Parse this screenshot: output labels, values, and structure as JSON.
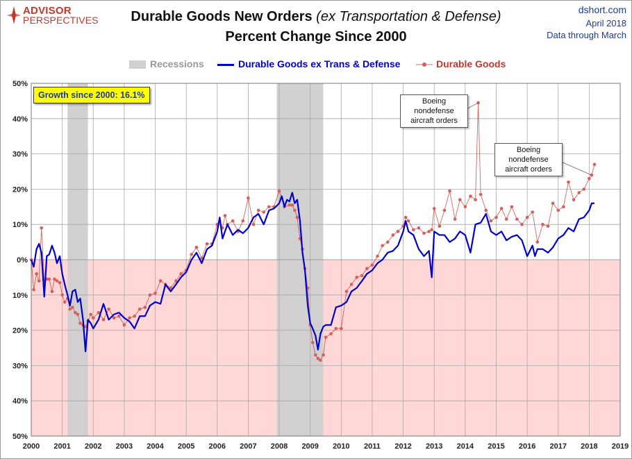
{
  "brand": {
    "name": "ADVISOR",
    "sub": "PERSPECTIVES"
  },
  "header": {
    "title_main": "Durable Goods New Orders",
    "title_em": "(ex Transportation & Defense)",
    "title_line2": "Percent Change Since 2000",
    "site": "dshort.com",
    "date": "April 2018",
    "data_through": "Data through March"
  },
  "colors": {
    "blue_series": "#0000cc",
    "red_series": "#c0392b",
    "recession": "#cfcfcf",
    "negative_region": "#ffd7d7"
  },
  "annotations": {
    "growth": "Growth since 2000:  16.1%",
    "boeing_1": [
      "Boeing",
      "nondefense",
      "aircraft orders"
    ],
    "boeing_2": [
      "Boeing",
      "nondefense",
      "aircraft orders"
    ]
  },
  "chart_data": {
    "type": "line",
    "title": "Durable Goods New Orders (ex Transportation & Defense) Percent Change Since 2000",
    "xlabel": "",
    "ylabel": "",
    "xlim": [
      2000,
      2019
    ],
    "ylim": [
      -50,
      50
    ],
    "y_ticks": [
      50,
      40,
      30,
      20,
      10,
      0,
      -10,
      -20,
      -30,
      -40,
      -50
    ],
    "y_tick_labels": [
      "50%",
      "40%",
      "30%",
      "20%",
      "10%",
      "0%",
      "10%",
      "20%",
      "30%",
      "40%",
      "50%"
    ],
    "x_ticks": [
      2000,
      2001,
      2002,
      2003,
      2004,
      2005,
      2006,
      2007,
      2008,
      2009,
      2010,
      2011,
      2012,
      2013,
      2014,
      2015,
      2016,
      2017,
      2018,
      2019
    ],
    "x_tick_labels": [
      "2000",
      "2001",
      "2002",
      "2003",
      "2004",
      "2005",
      "2006",
      "2007",
      "2008",
      "2009",
      "2010",
      "2011",
      "2012",
      "2013",
      "2014",
      "2015",
      "2016",
      "2017",
      "2018",
      "2019"
    ],
    "grid": true,
    "legend_position": "top-center",
    "recessions": [
      {
        "label": "Recessions",
        "start": 2001.17,
        "end": 2001.83
      },
      {
        "label": "Recessions",
        "start": 2007.92,
        "end": 2009.42
      }
    ],
    "series": [
      {
        "name": "Durable Goods ex Trans & Defense",
        "color": "#0000cc",
        "style": "line",
        "points": [
          [
            2000.0,
            0
          ],
          [
            2000.08,
            -2
          ],
          [
            2000.17,
            3
          ],
          [
            2000.25,
            4.5
          ],
          [
            2000.33,
            2
          ],
          [
            2000.42,
            -10.5
          ],
          [
            2000.5,
            1
          ],
          [
            2000.58,
            1.5
          ],
          [
            2000.67,
            4
          ],
          [
            2000.75,
            2
          ],
          [
            2000.83,
            -1
          ],
          [
            2000.92,
            1
          ],
          [
            2001.0,
            -4
          ],
          [
            2001.08,
            -7
          ],
          [
            2001.17,
            -10
          ],
          [
            2001.25,
            -13
          ],
          [
            2001.33,
            -9
          ],
          [
            2001.42,
            -8.5
          ],
          [
            2001.5,
            -12
          ],
          [
            2001.58,
            -11
          ],
          [
            2001.67,
            -17
          ],
          [
            2001.75,
            -26
          ],
          [
            2001.83,
            -17
          ],
          [
            2001.92,
            -18
          ],
          [
            2002.0,
            -19.5
          ],
          [
            2002.17,
            -17
          ],
          [
            2002.33,
            -12.5
          ],
          [
            2002.5,
            -17
          ],
          [
            2002.67,
            -15.5
          ],
          [
            2002.83,
            -15
          ],
          [
            2003.0,
            -16.5
          ],
          [
            2003.17,
            -17.5
          ],
          [
            2003.33,
            -19.5
          ],
          [
            2003.5,
            -16
          ],
          [
            2003.67,
            -16
          ],
          [
            2003.83,
            -13
          ],
          [
            2004.0,
            -12
          ],
          [
            2004.17,
            -12.5
          ],
          [
            2004.33,
            -7
          ],
          [
            2004.5,
            -9
          ],
          [
            2004.67,
            -7
          ],
          [
            2004.83,
            -5
          ],
          [
            2005.0,
            -3.5
          ],
          [
            2005.17,
            0
          ],
          [
            2005.33,
            2
          ],
          [
            2005.5,
            -1
          ],
          [
            2005.67,
            3
          ],
          [
            2005.83,
            4
          ],
          [
            2006.0,
            8
          ],
          [
            2006.08,
            12
          ],
          [
            2006.17,
            6
          ],
          [
            2006.33,
            10
          ],
          [
            2006.5,
            7
          ],
          [
            2006.67,
            8.5
          ],
          [
            2006.83,
            7.5
          ],
          [
            2007.0,
            9
          ],
          [
            2007.17,
            12
          ],
          [
            2007.33,
            13
          ],
          [
            2007.5,
            10
          ],
          [
            2007.67,
            14
          ],
          [
            2007.83,
            14.5
          ],
          [
            2008.0,
            16
          ],
          [
            2008.08,
            18
          ],
          [
            2008.17,
            15
          ],
          [
            2008.25,
            17
          ],
          [
            2008.33,
            16.5
          ],
          [
            2008.42,
            19
          ],
          [
            2008.5,
            16
          ],
          [
            2008.58,
            17
          ],
          [
            2008.67,
            11
          ],
          [
            2008.75,
            2
          ],
          [
            2008.83,
            -3
          ],
          [
            2008.92,
            -13
          ],
          [
            2009.0,
            -18
          ],
          [
            2009.08,
            -19.5
          ],
          [
            2009.17,
            -21.5
          ],
          [
            2009.25,
            -25.5
          ],
          [
            2009.33,
            -21
          ],
          [
            2009.42,
            -19
          ],
          [
            2009.5,
            -18.5
          ],
          [
            2009.67,
            -18.5
          ],
          [
            2009.83,
            -13.5
          ],
          [
            2010.0,
            -13
          ],
          [
            2010.17,
            -12
          ],
          [
            2010.33,
            -9
          ],
          [
            2010.5,
            -8
          ],
          [
            2010.67,
            -6
          ],
          [
            2010.83,
            -4
          ],
          [
            2011.0,
            -3
          ],
          [
            2011.17,
            -1
          ],
          [
            2011.33,
            0
          ],
          [
            2011.5,
            2
          ],
          [
            2011.67,
            2.5
          ],
          [
            2011.83,
            4
          ],
          [
            2012.0,
            8
          ],
          [
            2012.08,
            11
          ],
          [
            2012.17,
            8
          ],
          [
            2012.33,
            7
          ],
          [
            2012.5,
            3
          ],
          [
            2012.67,
            1
          ],
          [
            2012.83,
            2.5
          ],
          [
            2012.92,
            -5
          ],
          [
            2013.0,
            8
          ],
          [
            2013.17,
            7
          ],
          [
            2013.33,
            7
          ],
          [
            2013.5,
            5
          ],
          [
            2013.67,
            6
          ],
          [
            2013.83,
            8
          ],
          [
            2014.0,
            7
          ],
          [
            2014.17,
            2
          ],
          [
            2014.33,
            10
          ],
          [
            2014.5,
            10.5
          ],
          [
            2014.67,
            13
          ],
          [
            2014.83,
            8
          ],
          [
            2015.0,
            7
          ],
          [
            2015.17,
            8
          ],
          [
            2015.33,
            5.5
          ],
          [
            2015.5,
            6.5
          ],
          [
            2015.67,
            7
          ],
          [
            2015.83,
            5.5
          ],
          [
            2016.0,
            1
          ],
          [
            2016.17,
            4
          ],
          [
            2016.25,
            1
          ],
          [
            2016.33,
            3
          ],
          [
            2016.5,
            3
          ],
          [
            2016.67,
            2
          ],
          [
            2016.83,
            3.5
          ],
          [
            2017.0,
            6
          ],
          [
            2017.17,
            7
          ],
          [
            2017.33,
            9
          ],
          [
            2017.5,
            8
          ],
          [
            2017.67,
            11.5
          ],
          [
            2017.83,
            12
          ],
          [
            2018.0,
            14
          ],
          [
            2018.08,
            16
          ],
          [
            2018.17,
            16
          ]
        ]
      },
      {
        "name": "Durable Goods",
        "color": "#c0392b",
        "style": "line-markers",
        "points": [
          [
            2000.0,
            0
          ],
          [
            2000.08,
            -8.5
          ],
          [
            2000.17,
            -4
          ],
          [
            2000.25,
            -6
          ],
          [
            2000.33,
            9
          ],
          [
            2000.42,
            -6
          ],
          [
            2000.5,
            -5.5
          ],
          [
            2000.58,
            -5.5
          ],
          [
            2000.67,
            -9
          ],
          [
            2000.75,
            -5.5
          ],
          [
            2000.83,
            -6
          ],
          [
            2000.92,
            -6.5
          ],
          [
            2001.0,
            -10
          ],
          [
            2001.08,
            -12
          ],
          [
            2001.17,
            -11
          ],
          [
            2001.25,
            -14
          ],
          [
            2001.33,
            -13.5
          ],
          [
            2001.42,
            -15
          ],
          [
            2001.5,
            -15.5
          ],
          [
            2001.58,
            -18
          ],
          [
            2001.67,
            -18.5
          ],
          [
            2001.75,
            -19
          ],
          [
            2001.83,
            -17.5
          ],
          [
            2001.92,
            -15.5
          ],
          [
            2002.0,
            -16.5
          ],
          [
            2002.17,
            -15
          ],
          [
            2002.33,
            -17
          ],
          [
            2002.5,
            -14
          ],
          [
            2002.67,
            -16.5
          ],
          [
            2002.83,
            -16
          ],
          [
            2003.0,
            -18.5
          ],
          [
            2003.17,
            -16.5
          ],
          [
            2003.33,
            -16
          ],
          [
            2003.5,
            -14
          ],
          [
            2003.67,
            -13.5
          ],
          [
            2003.83,
            -10
          ],
          [
            2004.0,
            -9.5
          ],
          [
            2004.17,
            -6
          ],
          [
            2004.33,
            -7
          ],
          [
            2004.5,
            -8
          ],
          [
            2004.67,
            -6
          ],
          [
            2004.83,
            -4
          ],
          [
            2005.0,
            -3
          ],
          [
            2005.17,
            1.5
          ],
          [
            2005.33,
            3.5
          ],
          [
            2005.5,
            0.5
          ],
          [
            2005.67,
            4.5
          ],
          [
            2005.83,
            4.5
          ],
          [
            2006.0,
            10
          ],
          [
            2006.08,
            11
          ],
          [
            2006.17,
            9
          ],
          [
            2006.25,
            12.5
          ],
          [
            2006.33,
            10
          ],
          [
            2006.5,
            11
          ],
          [
            2006.67,
            8
          ],
          [
            2006.83,
            11
          ],
          [
            2007.0,
            17.5
          ],
          [
            2007.17,
            10
          ],
          [
            2007.33,
            14
          ],
          [
            2007.5,
            13.5
          ],
          [
            2007.67,
            15
          ],
          [
            2007.83,
            15
          ],
          [
            2008.0,
            19.5
          ],
          [
            2008.08,
            17.5
          ],
          [
            2008.17,
            15
          ],
          [
            2008.33,
            15.5
          ],
          [
            2008.42,
            15.5
          ],
          [
            2008.5,
            14
          ],
          [
            2008.58,
            12
          ],
          [
            2008.67,
            6
          ],
          [
            2008.75,
            3
          ],
          [
            2008.83,
            -2.5
          ],
          [
            2008.92,
            -8
          ],
          [
            2009.0,
            -18.5
          ],
          [
            2009.08,
            -23.5
          ],
          [
            2009.17,
            -27
          ],
          [
            2009.25,
            -28
          ],
          [
            2009.33,
            -28.5
          ],
          [
            2009.42,
            -27
          ],
          [
            2009.5,
            -22
          ],
          [
            2009.67,
            -21
          ],
          [
            2009.83,
            -19.5
          ],
          [
            2010.0,
            -19.5
          ],
          [
            2010.17,
            -9
          ],
          [
            2010.33,
            -7
          ],
          [
            2010.5,
            -5
          ],
          [
            2010.67,
            -4.5
          ],
          [
            2010.83,
            -2.5
          ],
          [
            2011.0,
            -1.5
          ],
          [
            2011.17,
            1
          ],
          [
            2011.33,
            4
          ],
          [
            2011.5,
            5
          ],
          [
            2011.67,
            7
          ],
          [
            2011.83,
            8
          ],
          [
            2012.0,
            9.5
          ],
          [
            2012.08,
            12
          ],
          [
            2012.17,
            11
          ],
          [
            2012.33,
            8.5
          ],
          [
            2012.5,
            9
          ],
          [
            2012.67,
            7.5
          ],
          [
            2012.83,
            8
          ],
          [
            2012.92,
            8.5
          ],
          [
            2013.0,
            14.5
          ],
          [
            2013.17,
            9.5
          ],
          [
            2013.33,
            14
          ],
          [
            2013.5,
            19.5
          ],
          [
            2013.67,
            11.5
          ],
          [
            2013.83,
            17
          ],
          [
            2014.0,
            15
          ],
          [
            2014.17,
            18
          ],
          [
            2014.33,
            17
          ],
          [
            2014.42,
            44.5
          ],
          [
            2014.5,
            18.5
          ],
          [
            2014.67,
            14
          ],
          [
            2014.83,
            11
          ],
          [
            2015.0,
            12
          ],
          [
            2015.17,
            14.5
          ],
          [
            2015.33,
            11.5
          ],
          [
            2015.5,
            15
          ],
          [
            2015.67,
            11.5
          ],
          [
            2015.83,
            10
          ],
          [
            2016.0,
            12
          ],
          [
            2016.17,
            13.5
          ],
          [
            2016.33,
            5
          ],
          [
            2016.5,
            10
          ],
          [
            2016.67,
            9.5
          ],
          [
            2016.83,
            16
          ],
          [
            2017.0,
            14
          ],
          [
            2017.17,
            15
          ],
          [
            2017.33,
            22
          ],
          [
            2017.5,
            17
          ],
          [
            2017.67,
            19
          ],
          [
            2017.83,
            20
          ],
          [
            2018.0,
            23
          ],
          [
            2018.08,
            24
          ],
          [
            2018.17,
            27
          ]
        ]
      }
    ]
  }
}
